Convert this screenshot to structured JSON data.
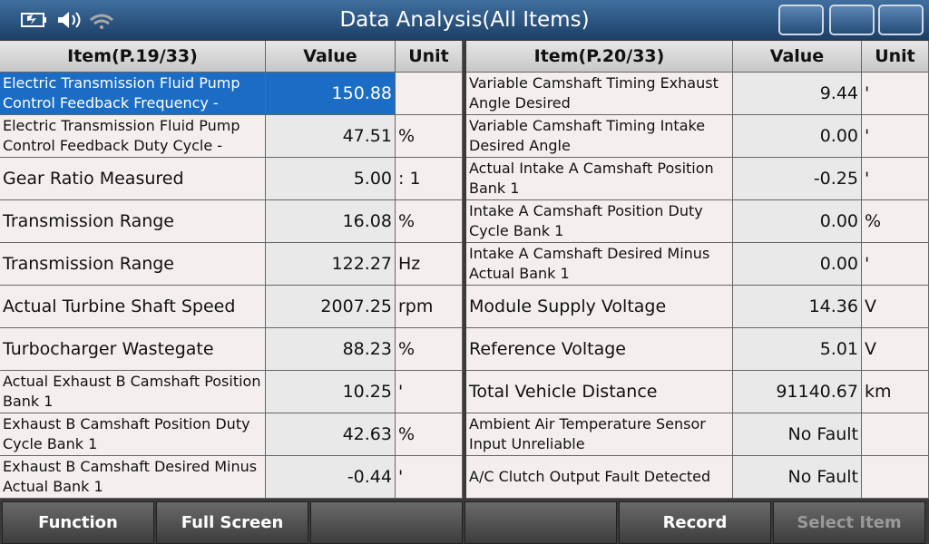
{
  "header": {
    "title": "Data Analysis(All Items)"
  },
  "left": {
    "columns": [
      "Item(P.19/33)",
      "Value",
      "Unit"
    ],
    "rows": [
      [
        "Electric Transmission Fluid Pump Control Feedback Frequency -",
        "150.88"
      ],
      [
        "Electric Transmission Fluid Pump Control Feedback Duty Cycle -",
        "47.51",
        "%"
      ],
      [
        "Gear Ratio Measured",
        "5.00",
        ": 1"
      ],
      [
        "Transmission Range",
        "16.08",
        "%"
      ],
      [
        "Transmission Range",
        "122.27",
        "Hz"
      ],
      [
        "Actual Turbine Shaft Speed",
        "2007.25",
        "rpm"
      ],
      [
        "Turbocharger Wastegate",
        "88.23",
        "%"
      ],
      [
        "Actual Exhaust B Camshaft Position Bank 1",
        "10.25",
        "'"
      ],
      [
        "Exhaust B Camshaft Position Duty Cycle Bank 1",
        "42.63",
        "%"
      ],
      [
        "Exhaust B Camshaft Desired Minus Actual Bank 1",
        "-0.44",
        "'"
      ]
    ]
  },
  "right": {
    "columns": [
      "Item(P.20/33)",
      "Value",
      "Unit"
    ],
    "rows": [
      [
        "Variable Camshaft Timing Exhaust Angle Desired",
        "9.44",
        "'"
      ],
      [
        "Variable Camshaft Timing Intake Desired Angle",
        "0.00",
        "'"
      ],
      [
        "Actual Intake A Camshaft Position Bank 1",
        "-0.25",
        "'"
      ],
      [
        "Intake A Camshaft Position Duty Cycle Bank 1",
        "0.00",
        "%"
      ],
      [
        "Intake A Camshaft Desired Minus Actual Bank 1",
        "0.00",
        "'"
      ],
      [
        "Module Supply Voltage",
        "14.36",
        "V"
      ],
      [
        "Reference Voltage",
        "5.01",
        "V"
      ],
      [
        "Total Vehicle Distance",
        "91140.67",
        "km"
      ],
      [
        "Ambient Air Temperature Sensor Input Unreliable",
        "No Fault"
      ],
      [
        "A/C Clutch Output Fault Detected",
        "No Fault"
      ]
    ]
  },
  "toolbar": {
    "buttons": [
      "Function",
      "Full Screen",
      "Record",
      "Select Item"
    ]
  }
}
